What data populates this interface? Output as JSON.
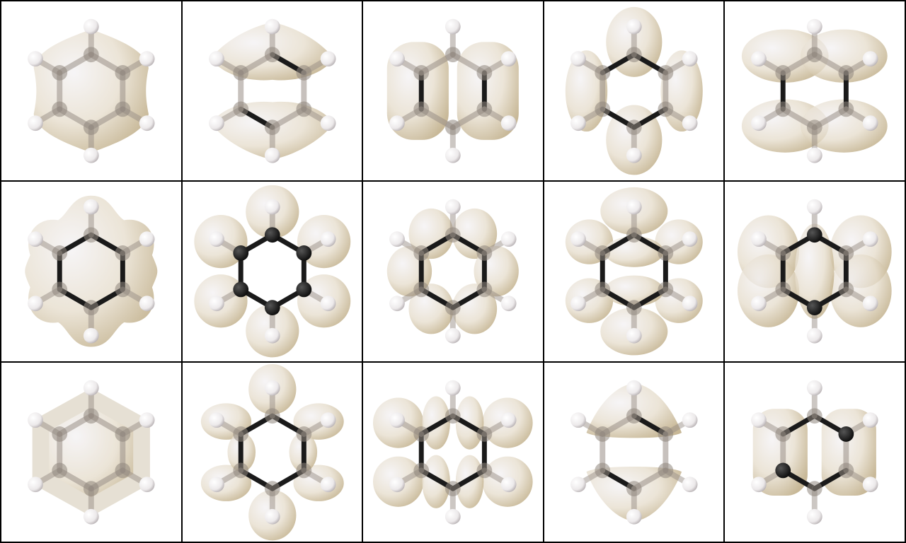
{
  "figure": {
    "title": "",
    "rows": 3,
    "cols": 5,
    "molecule": "benzene",
    "colors": {
      "background": "#ffffff",
      "divider": "#000000",
      "isosurface": "#e8e0d2",
      "isosurface_shadow": "#b8a47a",
      "isosurface_highlight": "#f4f2f4",
      "bond_dark": "#1a1a1a",
      "hydrogen": "#f2f2f2"
    },
    "panels": [
      {
        "id": "p1",
        "kind": "ring-ellipse-full"
      },
      {
        "id": "p2",
        "kind": "two-lobes-horizontal-split"
      },
      {
        "id": "p3",
        "kind": "two-lobes-vertical-split"
      },
      {
        "id": "p4",
        "kind": "four-lobes-cross"
      },
      {
        "id": "p5",
        "kind": "four-lobes-quadrants"
      },
      {
        "id": "p6",
        "kind": "ring-torus"
      },
      {
        "id": "p7",
        "kind": "six-lobes-radial"
      },
      {
        "id": "p8",
        "kind": "six-lobes-bonds"
      },
      {
        "id": "p9",
        "kind": "eight-lobes-grid"
      },
      {
        "id": "p10",
        "kind": "diamond-lobes"
      },
      {
        "id": "p11",
        "kind": "hexagon-solid"
      },
      {
        "id": "p12",
        "kind": "cross-lobes-top-bottom"
      },
      {
        "id": "p13",
        "kind": "eight-lobes-vertical"
      },
      {
        "id": "p14",
        "kind": "two-lobes-hemispheres"
      },
      {
        "id": "p15",
        "kind": "two-lobes-side-by-side"
      }
    ]
  }
}
